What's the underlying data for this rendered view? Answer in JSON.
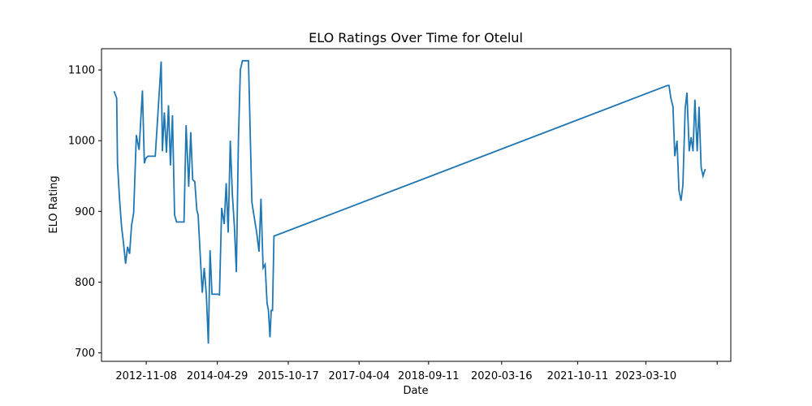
{
  "chart_data": {
    "type": "line",
    "title": "ELO Ratings Over Time for Otelul",
    "xlabel": "Date",
    "ylabel": "ELO Rating",
    "x_ticks": [
      "2012-11-08",
      "2014-04-29",
      "2015-10-17",
      "2017-04-04",
      "2018-09-11",
      "2020-03-16",
      "2021-10-11",
      "2023-03-10",
      ""
    ],
    "y_ticks": [
      "700",
      "800",
      "900",
      "1000",
      "1100"
    ],
    "xlim": [
      "2011-12-06",
      "2024-12-11"
    ],
    "ylim": [
      688,
      1130
    ],
    "grid": false,
    "line_color": "#1f77b4",
    "series": [
      {
        "x": [
          "2012-03-10",
          "2012-03-30",
          "2012-04-05",
          "2012-04-20",
          "2012-05-05",
          "2012-05-20",
          "2012-06-05",
          "2012-06-20",
          "2012-07-05",
          "2012-07-20",
          "2012-08-05",
          "2012-08-25",
          "2012-09-15",
          "2012-10-10",
          "2012-10-25",
          "2012-11-05",
          "2012-11-20",
          "2012-12-05",
          "2012-12-20",
          "2013-01-15",
          "2013-03-01",
          "2013-03-10",
          "2013-03-25",
          "2013-04-10",
          "2013-04-25",
          "2013-05-10",
          "2013-05-25",
          "2013-06-10",
          "2013-06-25",
          "2013-07-05",
          "2013-07-20",
          "2013-08-05",
          "2013-08-20",
          "2013-09-05",
          "2013-09-25",
          "2013-10-10",
          "2013-10-25",
          "2013-11-10",
          "2013-11-25",
          "2013-12-05",
          "2013-12-20",
          "2014-01-05",
          "2014-01-20",
          "2014-02-05",
          "2014-02-20",
          "2014-03-05",
          "2014-03-20",
          "2014-04-05",
          "2014-04-20",
          "2014-05-01",
          "2014-05-15",
          "2014-06-01",
          "2014-06-20",
          "2014-07-05",
          "2014-07-20",
          "2014-08-05",
          "2014-08-20",
          "2014-09-05",
          "2014-09-20",
          "2014-10-05",
          "2014-10-20",
          "2014-11-05",
          "2014-11-20",
          "2014-12-05",
          "2014-12-20",
          "2015-01-15",
          "2015-02-20",
          "2015-03-10",
          "2015-03-25",
          "2015-04-10",
          "2015-04-25",
          "2015-05-10",
          "2015-05-20",
          "2015-06-01",
          "2015-06-10",
          "2015-06-20",
          "2015-07-01",
          "2023-08-20",
          "2023-09-01",
          "2023-09-15",
          "2023-10-01",
          "2023-10-15",
          "2023-11-01",
          "2023-11-15",
          "2023-12-01",
          "2023-12-15",
          "2024-01-01",
          "2024-01-15",
          "2024-02-01",
          "2024-02-15",
          "2024-03-01",
          "2024-03-15",
          "2024-04-01",
          "2024-04-15",
          "2024-05-01",
          "2024-05-15",
          "2024-06-01"
        ],
        "values": [
          1070,
          1060,
          968,
          918,
          880,
          855,
          826,
          850,
          840,
          880,
          898,
          1008,
          987,
          1071,
          968,
          975,
          978,
          978,
          978,
          978,
          1112,
          985,
          1040,
          983,
          1050,
          965,
          1036,
          895,
          885,
          885,
          885,
          885,
          885,
          1022,
          935,
          1012,
          945,
          942,
          902,
          895,
          840,
          785,
          820,
          783,
          713,
          845,
          783,
          783,
          783,
          783,
          782,
          905,
          882,
          940,
          870,
          1000,
          925,
          878,
          814,
          1000,
          1100,
          1113,
          1113,
          1113,
          1113,
          913,
          870,
          843,
          918,
          820,
          825,
          770,
          760,
          722,
          760,
          760,
          865,
          1078,
          1078,
          1060,
          1048,
          978,
          1000,
          930,
          915,
          937,
          1045,
          1068,
          985,
          1005,
          985,
          1058,
          985,
          1048,
          962,
          950,
          960
        ]
      }
    ]
  }
}
